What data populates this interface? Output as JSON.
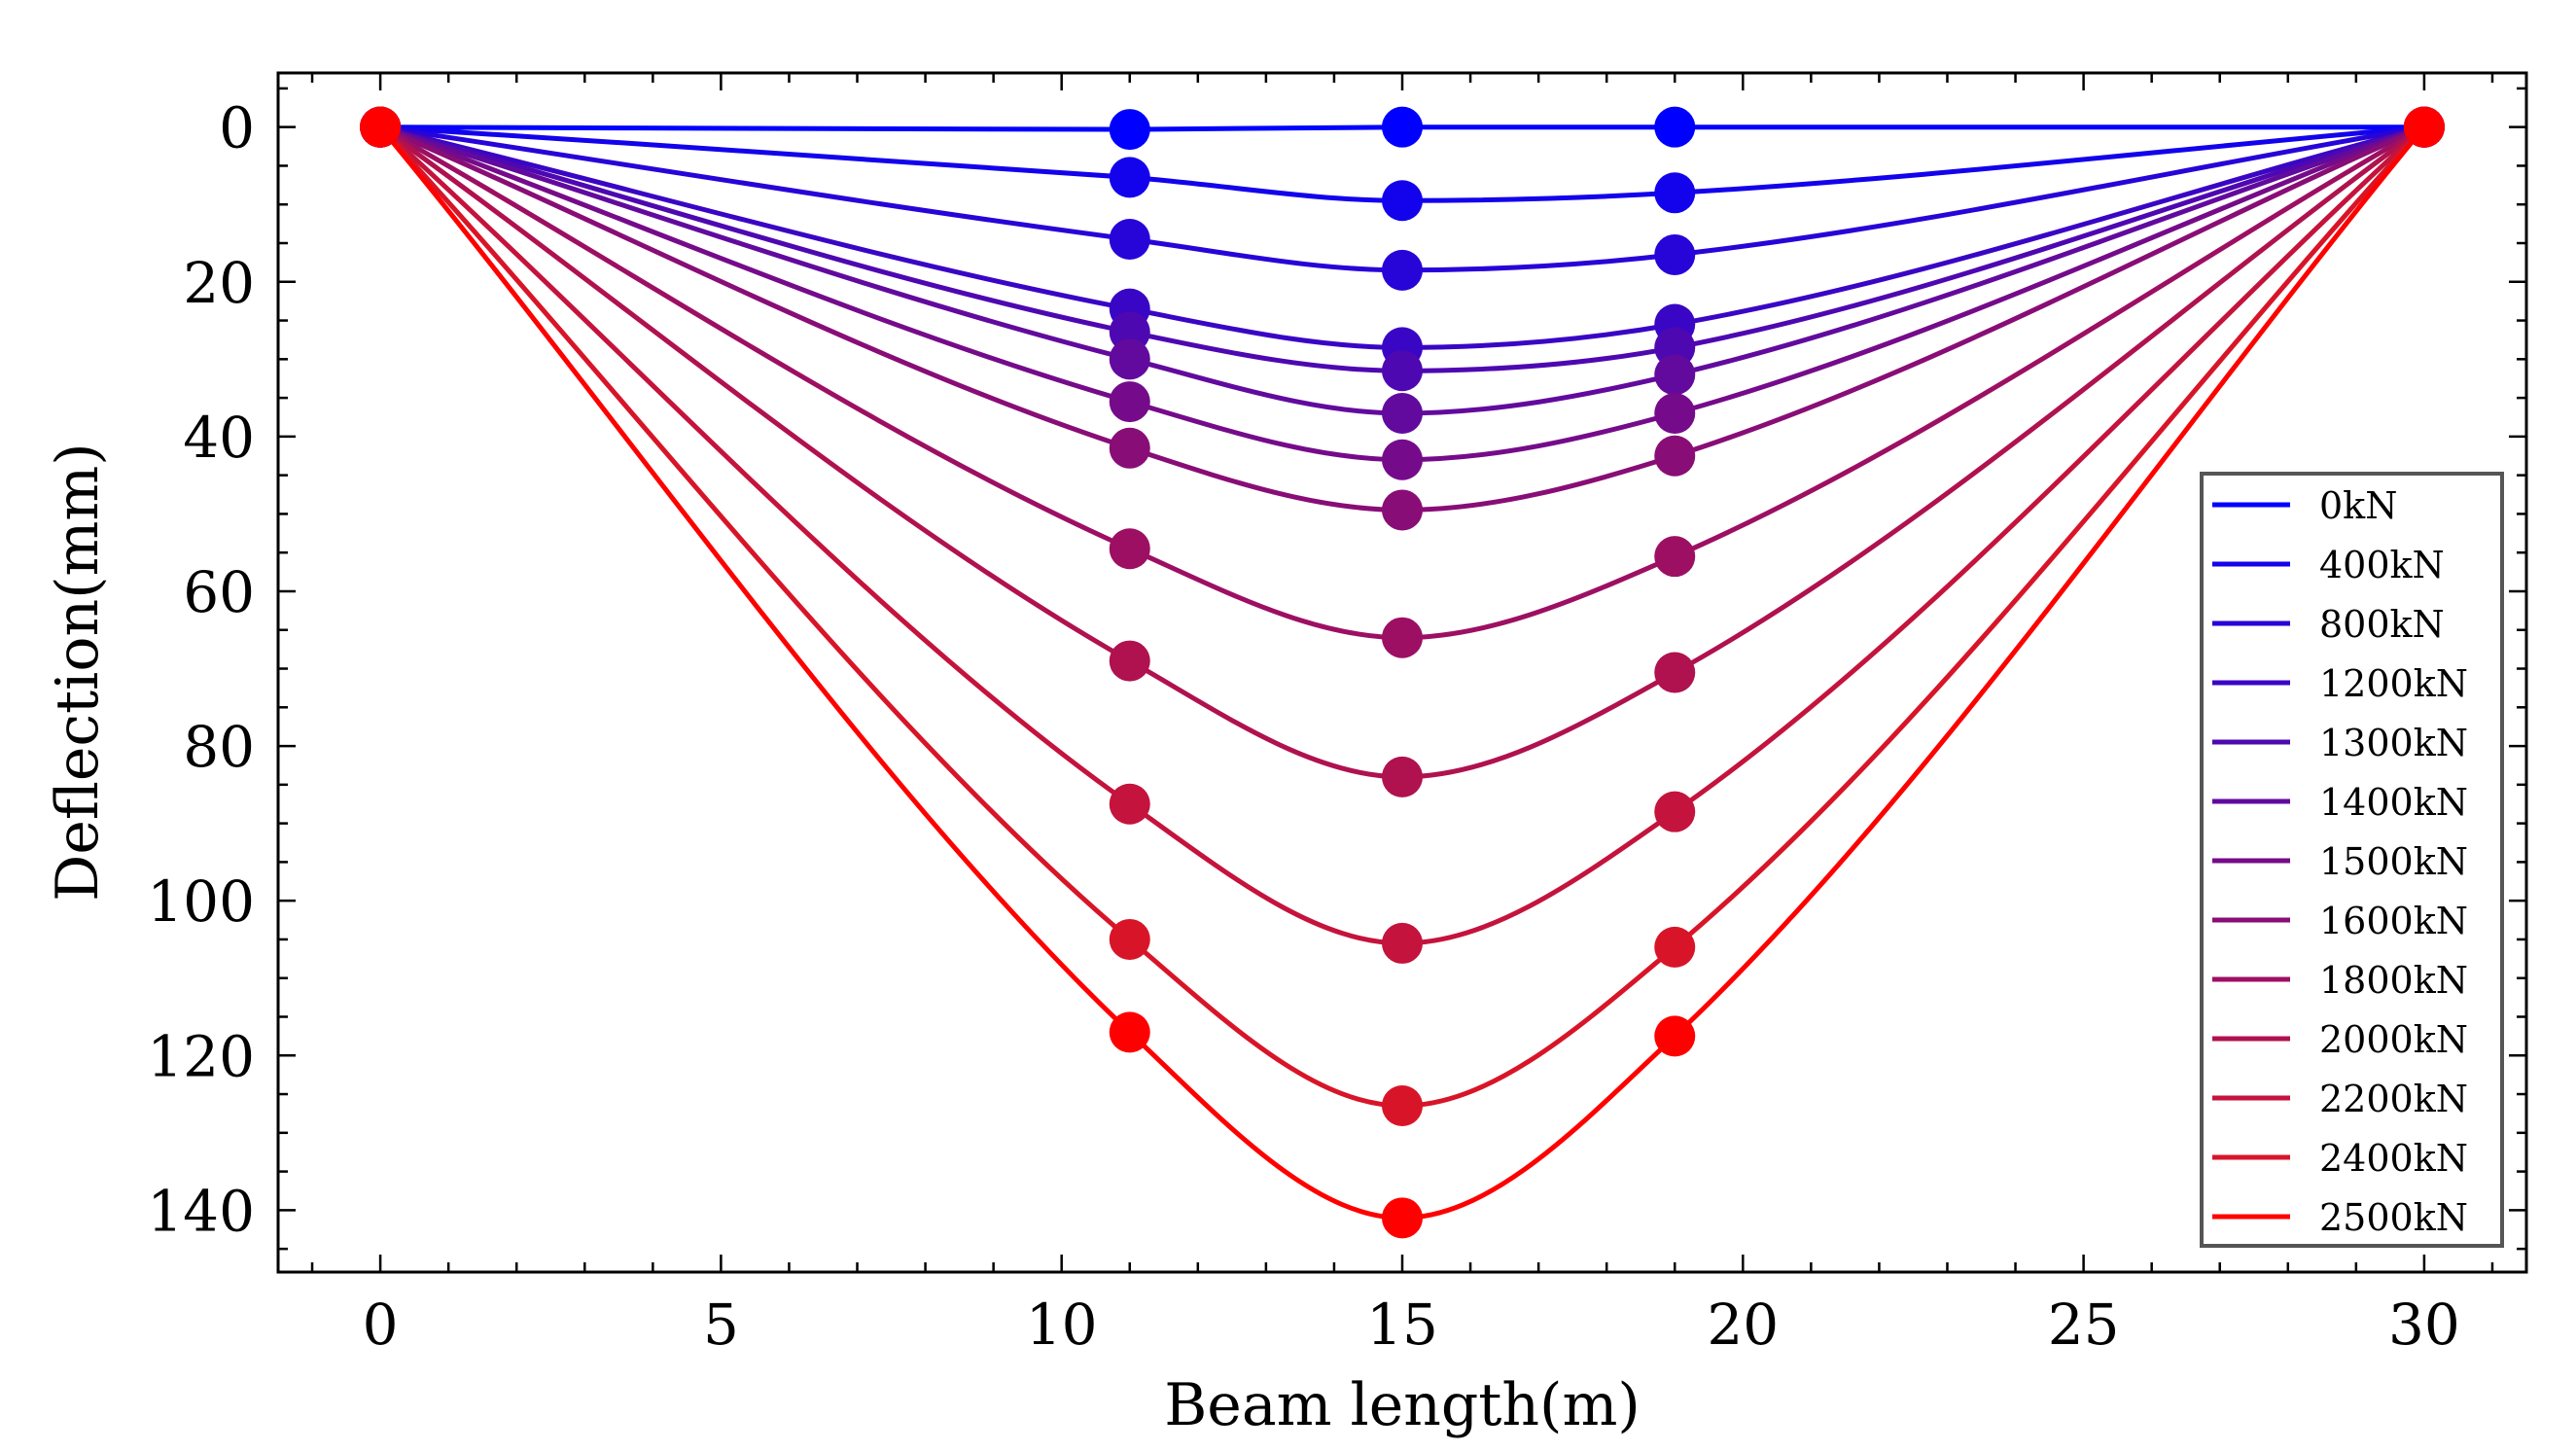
{
  "chart_data": {
    "type": "line",
    "title": "",
    "xlabel": "Beam length(m)",
    "ylabel": "Deflection(mm)",
    "xlim": [
      -1.5,
      31.5
    ],
    "ylim": [
      148,
      -7
    ],
    "y_inverted": true,
    "xticks": [
      0,
      5,
      10,
      15,
      20,
      25,
      30
    ],
    "yticks": [
      0,
      20,
      40,
      60,
      80,
      100,
      120,
      140
    ],
    "grid": false,
    "legend_position": "lower-right",
    "x": [
      0,
      11,
      15,
      19,
      30
    ],
    "series": [
      {
        "name": "0kN",
        "color": "#0000ff",
        "values": [
          0,
          0.3,
          0,
          0,
          0
        ]
      },
      {
        "name": "400kN",
        "color": "#1302ec",
        "values": [
          0,
          6.5,
          9.5,
          8.5,
          0
        ]
      },
      {
        "name": "800kN",
        "color": "#2704d8",
        "values": [
          0,
          14.5,
          18.5,
          16.5,
          0
        ]
      },
      {
        "name": "1200kN",
        "color": "#3a06c5",
        "values": [
          0,
          23.5,
          28.5,
          25.5,
          0
        ]
      },
      {
        "name": "1300kN",
        "color": "#4e08b1",
        "values": [
          0,
          26.5,
          31.5,
          28.5,
          0
        ]
      },
      {
        "name": "1400kN",
        "color": "#620a9e",
        "values": [
          0,
          30,
          37,
          32,
          0
        ]
      },
      {
        "name": "1500kN",
        "color": "#750b8a",
        "values": [
          0,
          35.5,
          43,
          37,
          0
        ]
      },
      {
        "name": "1600kN",
        "color": "#890d76",
        "values": [
          0,
          41.5,
          49.5,
          42.5,
          0
        ]
      },
      {
        "name": "1800kN",
        "color": "#9d0f63",
        "values": [
          0,
          54.5,
          66,
          55.5,
          0
        ]
      },
      {
        "name": "2000kN",
        "color": "#b0114f",
        "values": [
          0,
          69,
          84,
          70.5,
          0
        ]
      },
      {
        "name": "2200kN",
        "color": "#c4133c",
        "values": [
          0,
          87.5,
          105.5,
          88.5,
          0
        ]
      },
      {
        "name": "2400kN",
        "color": "#d81528",
        "values": [
          0,
          105,
          126.5,
          106,
          0
        ]
      },
      {
        "name": "2500kN",
        "color": "#ff0000",
        "values": [
          0,
          117,
          141,
          117.5,
          0
        ]
      }
    ]
  }
}
